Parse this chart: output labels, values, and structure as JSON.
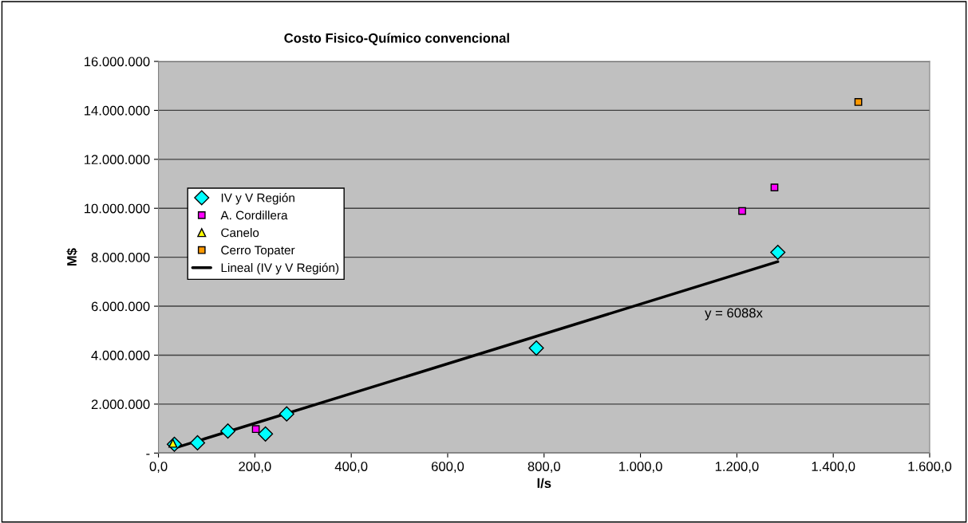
{
  "chart_data": {
    "type": "scatter",
    "title": "Costo Fisico-Químico convencional",
    "xlabel": "l/s",
    "ylabel": "M$",
    "series": [
      {
        "name": "IV y V Región",
        "color": "#00ffff",
        "marker": "diamond",
        "x": [
          33,
          81,
          144,
          222,
          266,
          784,
          1285
        ],
        "values": [
          360000,
          420000,
          900000,
          780000,
          1600000,
          4290000,
          8200000
        ]
      },
      {
        "name": "A. Cordillera",
        "color": "#ff00ff",
        "marker": "square",
        "x": [
          202,
          1211,
          1278
        ],
        "values": [
          980000,
          9890000,
          10850000
        ]
      },
      {
        "name": "Canelo",
        "color": "#ffff00",
        "marker": "triangle",
        "x": [
          30
        ],
        "values": [
          400000
        ]
      },
      {
        "name": "Cerro Topater",
        "color": "#ff9900",
        "marker": "square",
        "x": [
          1452
        ],
        "values": [
          14340000
        ]
      },
      {
        "name": "Lineal (IV y V Región)",
        "type": "line",
        "color": "#000000",
        "marker": "none",
        "x": [
          33,
          1285
        ],
        "values": [
          200000,
          7820000
        ]
      }
    ],
    "annotations": [
      "y = 6088x"
    ],
    "xlim": [
      0,
      1600
    ],
    "ylim": [
      0,
      16000000
    ],
    "xticks": [
      {
        "value": 0,
        "label": "0,0"
      },
      {
        "value": 200,
        "label": "200,0"
      },
      {
        "value": 400,
        "label": "400,0"
      },
      {
        "value": 600,
        "label": "600,0"
      },
      {
        "value": 800,
        "label": "800,0"
      },
      {
        "value": 1000,
        "label": "1.000,0"
      },
      {
        "value": 1200,
        "label": "1.200,0"
      },
      {
        "value": 1400,
        "label": "1.400,0"
      },
      {
        "value": 1600,
        "label": "1.600,0"
      }
    ],
    "yticks": [
      {
        "value": 0,
        "label": "-"
      },
      {
        "value": 2000000,
        "label": "2.000.000"
      },
      {
        "value": 4000000,
        "label": "4.000.000"
      },
      {
        "value": 6000000,
        "label": "6.000.000"
      },
      {
        "value": 8000000,
        "label": "8.000.000"
      },
      {
        "value": 10000000,
        "label": "10.000.000"
      },
      {
        "value": 12000000,
        "label": "12.000.000"
      },
      {
        "value": 14000000,
        "label": "14.000.000"
      },
      {
        "value": 16000000,
        "label": "16.000.000"
      }
    ],
    "grid": "y",
    "legend": "left"
  }
}
